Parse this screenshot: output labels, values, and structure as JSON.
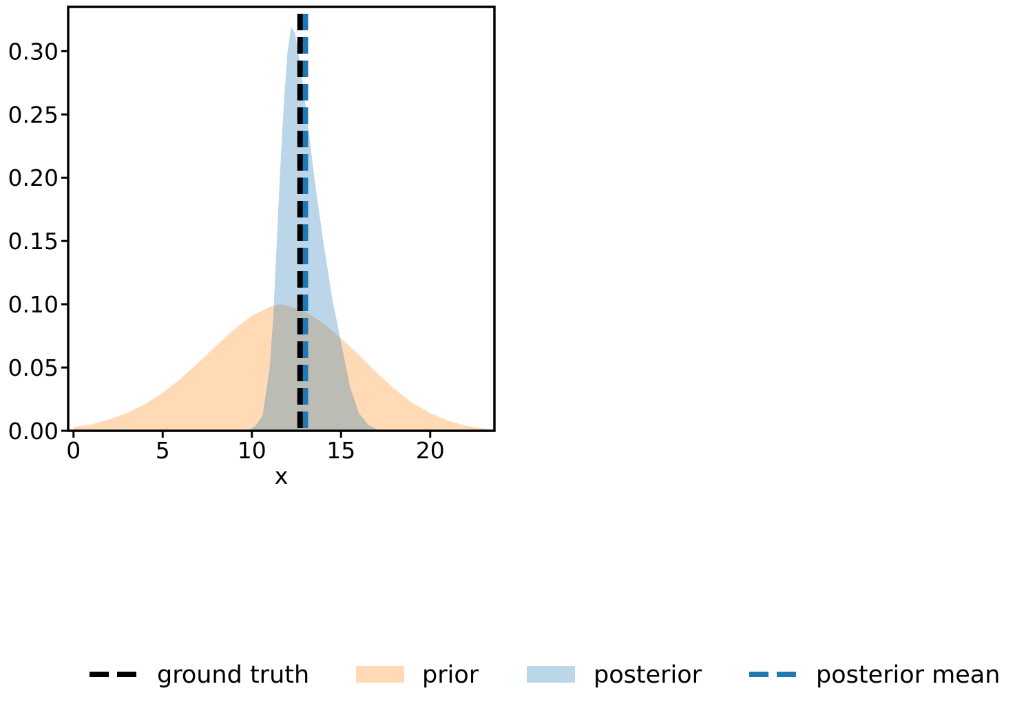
{
  "chart_data": {
    "type": "area",
    "xlabel": "x",
    "ylabel": "",
    "xlim": [
      -0.3,
      23.6
    ],
    "ylim": [
      0,
      0.335
    ],
    "x_ticks": [
      0,
      5,
      10,
      15,
      20
    ],
    "x_tick_labels": [
      "0",
      "5",
      "10",
      "15",
      "20"
    ],
    "y_ticks": [
      0,
      0.05,
      0.1,
      0.15,
      0.2,
      0.25,
      0.3
    ],
    "y_tick_labels": [
      "0.00",
      "0.05",
      "0.10",
      "0.15",
      "0.20",
      "0.25",
      "0.30"
    ],
    "grid": false,
    "legend_position": "bottom",
    "series": [
      {
        "name": "prior",
        "kind": "filled-density",
        "color": "#ffbb78",
        "opacity": 0.55,
        "x": [
          0,
          1,
          2,
          3,
          4,
          5,
          6,
          7,
          8,
          9,
          10,
          11,
          11.6,
          12,
          13,
          14,
          15,
          16,
          17,
          18,
          19,
          20,
          21,
          22,
          23.3
        ],
        "y": [
          0.003,
          0.005,
          0.009,
          0.014,
          0.021,
          0.03,
          0.041,
          0.054,
          0.067,
          0.08,
          0.091,
          0.098,
          0.1,
          0.099,
          0.094,
          0.085,
          0.073,
          0.06,
          0.046,
          0.033,
          0.022,
          0.014,
          0.008,
          0.004,
          0.001
        ]
      },
      {
        "name": "posterior",
        "kind": "filled-density",
        "color": "#1f77b4",
        "opacity": 0.3,
        "x": [
          9.8,
          10.2,
          10.6,
          11.0,
          11.2,
          11.4,
          11.6,
          11.8,
          12.0,
          12.2,
          12.4,
          12.6,
          12.8,
          13.0,
          13.2,
          13.4,
          13.6,
          14.0,
          14.5,
          15.0,
          15.5,
          16.0,
          16.5,
          17.0,
          17.5
        ],
        "y": [
          0.0,
          0.004,
          0.012,
          0.05,
          0.09,
          0.15,
          0.21,
          0.26,
          0.3,
          0.319,
          0.315,
          0.3,
          0.28,
          0.258,
          0.235,
          0.212,
          0.19,
          0.15,
          0.105,
          0.07,
          0.035,
          0.014,
          0.005,
          0.001,
          0.0
        ]
      },
      {
        "name": "ground truth",
        "kind": "vline",
        "x": 12.7,
        "color": "#000000",
        "style": "dashed"
      },
      {
        "name": "posterior mean",
        "kind": "vline",
        "x": 13.0,
        "color": "#1f77b4",
        "style": "dashed"
      }
    ],
    "legend": [
      "ground truth",
      "prior",
      "posterior",
      "posterior mean"
    ]
  }
}
